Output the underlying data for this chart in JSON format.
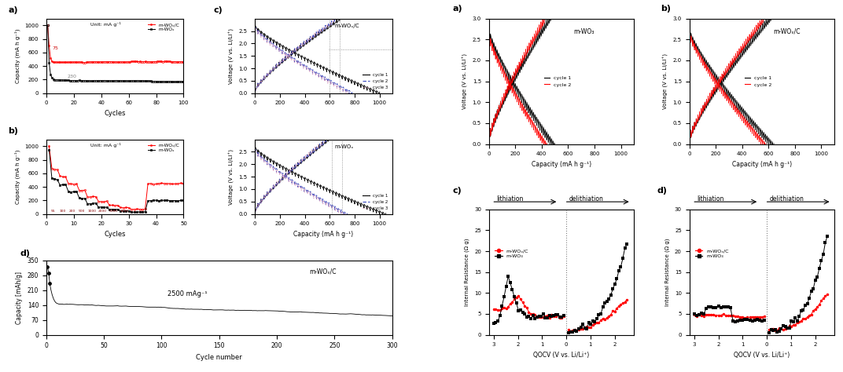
{
  "fig_width": 10.72,
  "fig_height": 4.74,
  "panel_a_xlabel": "Cycles",
  "panel_a_ylabel": "Capacity (mA h g⁻¹)",
  "panel_a_legend1": "m-WOₓ/C",
  "panel_a_legend2": "m-WOₓ",
  "panel_a_unit_text": "Unit: mA g⁻¹",
  "panel_b_xlabel": "Cycles",
  "panel_b_ylabel": "Capacity (mA h g⁻¹)",
  "panel_b_legend1": "m-WOₓ/C",
  "panel_b_legend2": "m-WOₓ",
  "panel_c_top_label": "m-WOₓ/C",
  "panel_c_bot_label": "m-WOₓ",
  "panel_c_xlabel": "Capacity (mA h g⁻¹)",
  "panel_c_ylabel": "Voltage (V vs. Li/Li⁺)",
  "panel_c_legend1": "cycle 1",
  "panel_c_legend2": "cycle 2",
  "panel_c_legend3": "cycle 3",
  "panel_d_xlabel": "Cycle number",
  "panel_d_ylabel": "Capacity [mAh/g]",
  "panel_d_label": "m-WOₓ/C",
  "panel_d_annotation": "2500 mAg⁻¹",
  "right_a_xlabel": "Capacity (mA h g⁻¹)",
  "right_a_ylabel": "Voltage (V vs. Li/Li⁺)",
  "right_a_label": "m-WO₃",
  "right_a_legend1": "cycle 1",
  "right_a_legend2": "cycle 2",
  "right_b_xlabel": "Capacity (mA h g⁻¹)",
  "right_b_ylabel": "Voltage (V vs. Li/Li⁺)",
  "right_b_label": "m-WOₓ/C",
  "right_b_legend1": "cycle 1",
  "right_b_legend2": "cycle 2",
  "right_c_xlabel": "QOCV (V vs. Li/Li⁺)",
  "right_c_ylabel": "Internal Resistance (Ω g)",
  "right_c_legend1": "m-WOₓ/C",
  "right_c_legend2": "m-WO₃",
  "right_c_lith_text": "lithiation",
  "right_c_delith_text": "delithiation",
  "right_d_xlabel": "QOCV (V vs. Li/Li⁺)",
  "right_d_ylabel": "Internal Resistance (Ω g)",
  "right_d_legend1": "m-WOₓ/C",
  "right_d_legend2": "m-WO₃",
  "right_d_lith_text": "lithiation",
  "right_d_delith_text": "delithiation"
}
